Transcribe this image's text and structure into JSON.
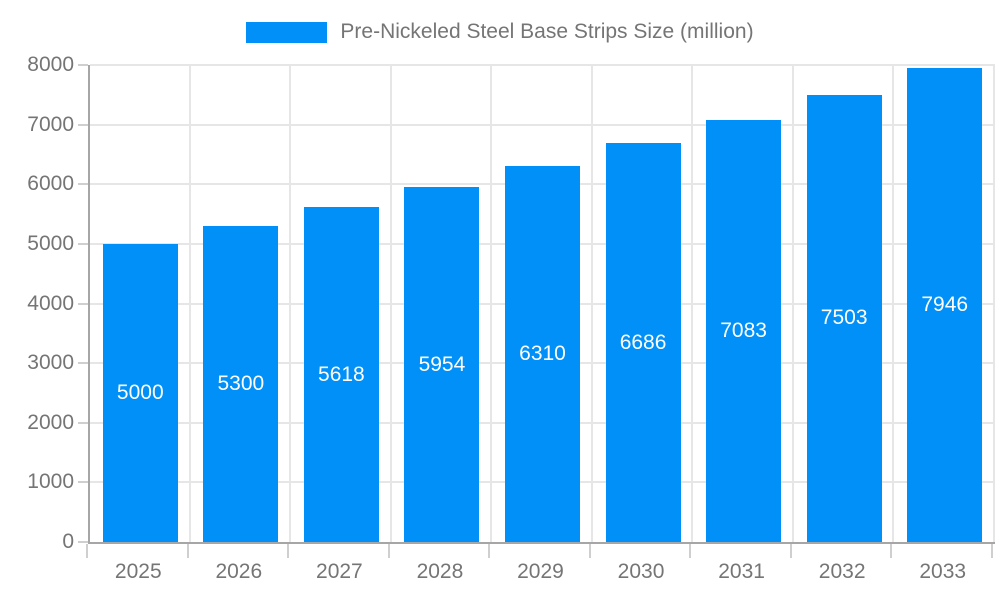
{
  "chart_data": {
    "type": "bar",
    "title": "Pre-Nickeled Steel Base Strips Size (million)",
    "categories": [
      "2025",
      "2026",
      "2027",
      "2028",
      "2029",
      "2030",
      "2031",
      "2032",
      "2033"
    ],
    "values": [
      5000,
      5300,
      5618,
      5954,
      6310,
      6686,
      7083,
      7503,
      7946
    ],
    "series": [
      {
        "name": "Pre-Nickeled Steel Base Strips Size (million)",
        "values": [
          5000,
          5300,
          5618,
          5954,
          6310,
          6686,
          7083,
          7503,
          7946
        ]
      }
    ],
    "xlabel": "",
    "ylabel": "",
    "ylim": [
      0,
      8000
    ],
    "ytick_step": 1000,
    "ytick_labels": [
      "0",
      "1000",
      "2000",
      "3000",
      "4000",
      "5000",
      "6000",
      "7000",
      "8000"
    ],
    "grid": true,
    "legend_position": "top-center",
    "bar_color": "#0090f7",
    "value_label_color": "#ffffff",
    "axis_text_color": "#757575"
  }
}
